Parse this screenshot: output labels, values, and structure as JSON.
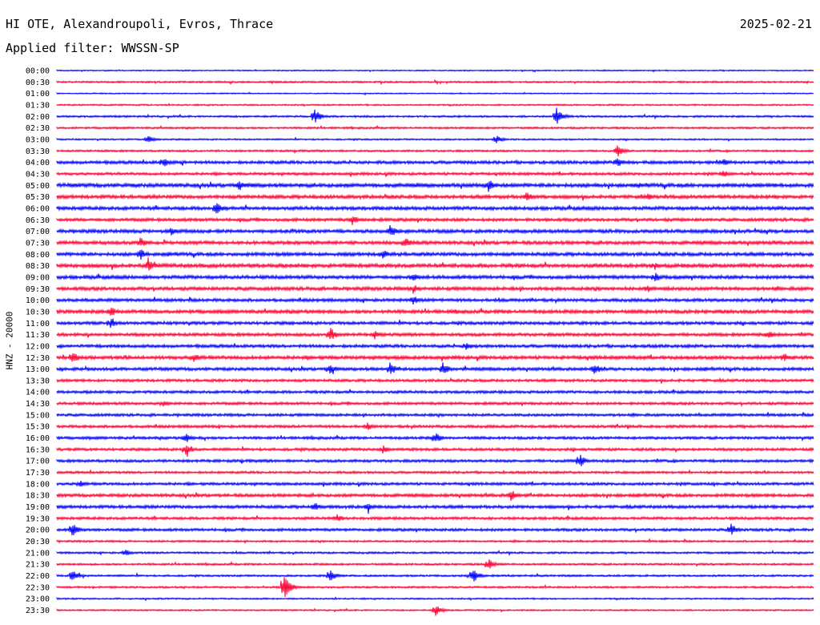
{
  "header": {
    "station": "HI OTE, Alexandroupoli, Evros, Thrace",
    "date": "2025-02-21",
    "filter_label": "Applied filter: WWSSN-SP"
  },
  "chart_data": {
    "type": "line",
    "title": "HI OTE, Alexandroupoli, Evros, Thrace",
    "ylabel": "HNZ - 20000",
    "xlabel": "",
    "series_colors": [
      "#0000ff",
      "#ff0033"
    ],
    "tick_labels": [
      "00:00",
      "00:30",
      "01:00",
      "01:30",
      "02:00",
      "02:30",
      "03:00",
      "03:30",
      "04:00",
      "04:30",
      "05:00",
      "05:30",
      "06:00",
      "06:30",
      "07:00",
      "07:30",
      "08:00",
      "08:30",
      "09:00",
      "09:30",
      "10:00",
      "10:30",
      "11:00",
      "11:30",
      "12:00",
      "12:30",
      "13:00",
      "13:30",
      "14:00",
      "14:30",
      "15:00",
      "15:30",
      "16:00",
      "16:30",
      "17:00",
      "17:30",
      "18:00",
      "18:30",
      "19:00",
      "19:30",
      "20:00",
      "20:30",
      "21:00",
      "21:30",
      "22:00",
      "22:30",
      "23:00",
      "23:30"
    ],
    "noise_level": [
      0.6,
      0.9,
      0.6,
      0.8,
      1.0,
      1.0,
      0.8,
      1.0,
      1.6,
      1.4,
      2.0,
      1.8,
      1.8,
      1.6,
      1.8,
      1.8,
      1.8,
      2.0,
      1.8,
      1.8,
      1.6,
      1.8,
      1.6,
      1.6,
      1.6,
      1.8,
      1.6,
      1.4,
      1.4,
      1.4,
      1.4,
      1.4,
      1.4,
      1.4,
      1.4,
      1.2,
      1.4,
      1.6,
      1.6,
      1.4,
      1.4,
      1.0,
      1.0,
      1.0,
      1.0,
      1.0,
      0.8,
      0.8
    ],
    "events": [
      {
        "row": 4,
        "x": 0.34,
        "amp": 10
      },
      {
        "row": 4,
        "x": 0.66,
        "amp": 12
      },
      {
        "row": 6,
        "x": 0.12,
        "amp": 6
      },
      {
        "row": 6,
        "x": 0.58,
        "amp": 6
      },
      {
        "row": 7,
        "x": 0.74,
        "amp": 9
      },
      {
        "row": 8,
        "x": 0.14,
        "amp": 7
      },
      {
        "row": 8,
        "x": 0.74,
        "amp": 8
      },
      {
        "row": 8,
        "x": 0.88,
        "amp": 7
      },
      {
        "row": 9,
        "x": 0.88,
        "amp": 6
      },
      {
        "row": 10,
        "x": 0.24,
        "amp": 8
      },
      {
        "row": 10,
        "x": 0.57,
        "amp": 9
      },
      {
        "row": 11,
        "x": 0.62,
        "amp": 7
      },
      {
        "row": 11,
        "x": 0.78,
        "amp": 6
      },
      {
        "row": 12,
        "x": 0.21,
        "amp": 9
      },
      {
        "row": 13,
        "x": 0.39,
        "amp": 7
      },
      {
        "row": 14,
        "x": 0.44,
        "amp": 9
      },
      {
        "row": 14,
        "x": 0.15,
        "amp": 6
      },
      {
        "row": 15,
        "x": 0.11,
        "amp": 8
      },
      {
        "row": 15,
        "x": 0.46,
        "amp": 8
      },
      {
        "row": 16,
        "x": 0.11,
        "amp": 8
      },
      {
        "row": 16,
        "x": 0.43,
        "amp": 7
      },
      {
        "row": 17,
        "x": 0.12,
        "amp": 9
      },
      {
        "row": 17,
        "x": 0.79,
        "amp": 6
      },
      {
        "row": 18,
        "x": 0.47,
        "amp": 6
      },
      {
        "row": 18,
        "x": 0.79,
        "amp": 7
      },
      {
        "row": 19,
        "x": 0.47,
        "amp": 7
      },
      {
        "row": 19,
        "x": 0.78,
        "amp": 6
      },
      {
        "row": 20,
        "x": 0.47,
        "amp": 7
      },
      {
        "row": 21,
        "x": 0.07,
        "amp": 8
      },
      {
        "row": 22,
        "x": 0.07,
        "amp": 7
      },
      {
        "row": 23,
        "x": 0.36,
        "amp": 11
      },
      {
        "row": 23,
        "x": 0.42,
        "amp": 6
      },
      {
        "row": 23,
        "x": 0.94,
        "amp": 6
      },
      {
        "row": 24,
        "x": 0.54,
        "amp": 7
      },
      {
        "row": 25,
        "x": 0.02,
        "amp": 9
      },
      {
        "row": 25,
        "x": 0.18,
        "amp": 7
      },
      {
        "row": 25,
        "x": 0.96,
        "amp": 7
      },
      {
        "row": 26,
        "x": 0.36,
        "amp": 8
      },
      {
        "row": 26,
        "x": 0.44,
        "amp": 9
      },
      {
        "row": 26,
        "x": 0.51,
        "amp": 9
      },
      {
        "row": 26,
        "x": 0.71,
        "amp": 8
      },
      {
        "row": 29,
        "x": 0.14,
        "amp": 5
      },
      {
        "row": 31,
        "x": 0.41,
        "amp": 6
      },
      {
        "row": 32,
        "x": 0.17,
        "amp": 7
      },
      {
        "row": 32,
        "x": 0.5,
        "amp": 8
      },
      {
        "row": 33,
        "x": 0.17,
        "amp": 9
      },
      {
        "row": 33,
        "x": 0.43,
        "amp": 6
      },
      {
        "row": 34,
        "x": 0.69,
        "amp": 10
      },
      {
        "row": 36,
        "x": 0.03,
        "amp": 5
      },
      {
        "row": 37,
        "x": 0.6,
        "amp": 8
      },
      {
        "row": 38,
        "x": 0.34,
        "amp": 7
      },
      {
        "row": 38,
        "x": 0.41,
        "amp": 6
      },
      {
        "row": 39,
        "x": 0.37,
        "amp": 6
      },
      {
        "row": 40,
        "x": 0.02,
        "amp": 10
      },
      {
        "row": 40,
        "x": 0.89,
        "amp": 9
      },
      {
        "row": 42,
        "x": 0.09,
        "amp": 5
      },
      {
        "row": 43,
        "x": 0.57,
        "amp": 8
      },
      {
        "row": 44,
        "x": 0.02,
        "amp": 9
      },
      {
        "row": 44,
        "x": 0.36,
        "amp": 9
      },
      {
        "row": 44,
        "x": 0.55,
        "amp": 10
      },
      {
        "row": 45,
        "x": 0.3,
        "amp": 16
      },
      {
        "row": 47,
        "x": 0.5,
        "amp": 8
      }
    ]
  }
}
